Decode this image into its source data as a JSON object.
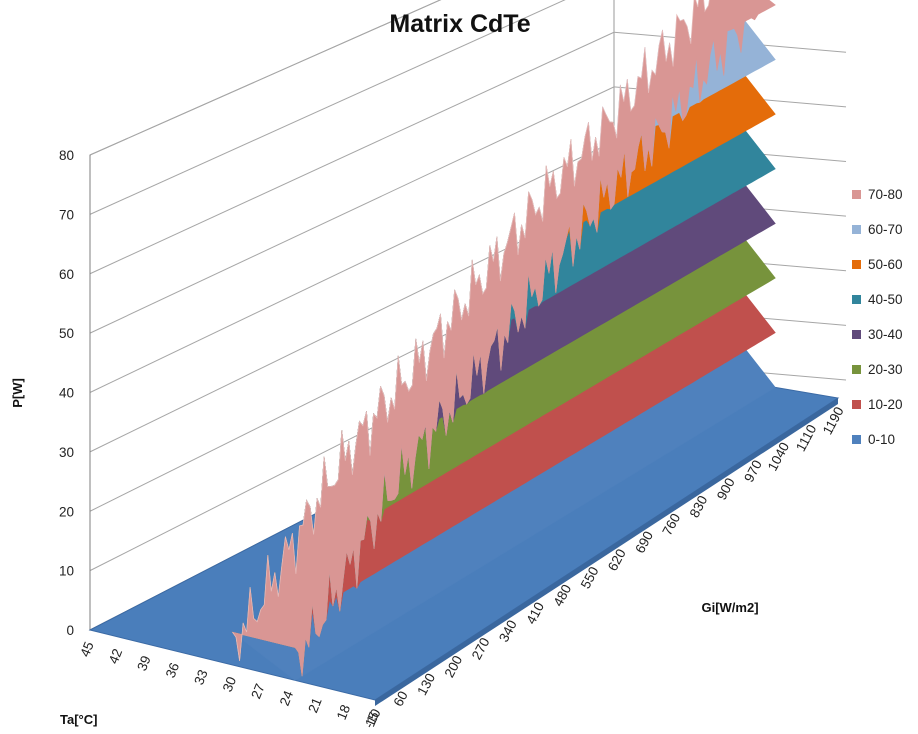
{
  "chart_data": {
    "type": "surface",
    "title": "Matrix CdTe",
    "zlabel": "P[W]",
    "xlabel": "Gi[W/m2]",
    "ylabel": "Ta[°C]",
    "z_ticks": [
      "0",
      "10",
      "20",
      "30",
      "40",
      "50",
      "60",
      "70",
      "80"
    ],
    "zlim": [
      0,
      80
    ],
    "gi_ticks": [
      "-10",
      "60",
      "130",
      "200",
      "270",
      "340",
      "410",
      "480",
      "550",
      "620",
      "690",
      "760",
      "830",
      "900",
      "970",
      "1040",
      "1110",
      "1190"
    ],
    "ta_ticks": [
      "45",
      "42",
      "39",
      "36",
      "33",
      "30",
      "27",
      "24",
      "21",
      "18",
      "15"
    ],
    "legend_position": "right",
    "bands": [
      {
        "name": "70-80",
        "color": "#d99694"
      },
      {
        "name": "60-70",
        "color": "#95b3d7"
      },
      {
        "name": "50-60",
        "color": "#e46c0a"
      },
      {
        "name": "40-50",
        "color": "#31859c"
      },
      {
        "name": "30-40",
        "color": "#604a7b"
      },
      {
        "name": "20-30",
        "color": "#77933c"
      },
      {
        "name": "10-20",
        "color": "#c0504d"
      },
      {
        "name": "0-10",
        "color": "#4f81bd"
      }
    ],
    "ridge_profile": {
      "gi": [
        -10,
        60,
        130,
        200,
        270,
        340,
        410,
        480,
        550,
        620,
        690,
        760,
        830,
        900,
        970,
        1040,
        1110,
        1190
      ],
      "p_max": [
        3,
        8,
        14,
        20,
        25,
        29,
        32,
        36,
        40,
        44,
        48,
        52,
        55,
        58,
        62,
        66,
        70,
        76
      ]
    }
  }
}
